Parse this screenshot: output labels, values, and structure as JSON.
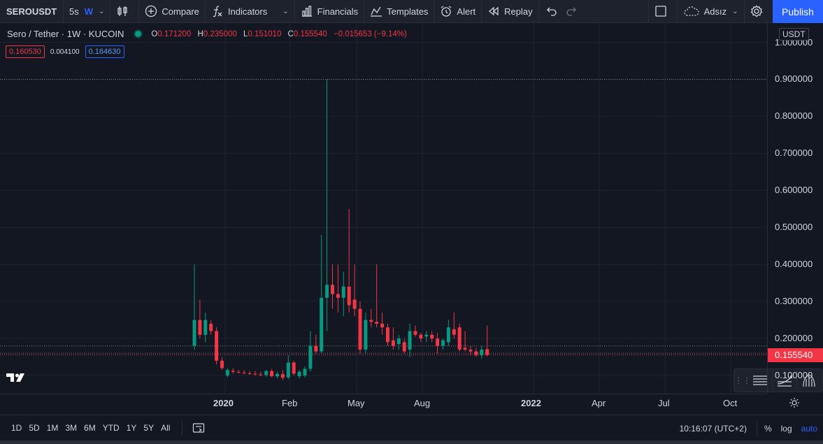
{
  "toolbar": {
    "symbol": "SEROUSDT",
    "interval_sec": "5s",
    "interval_active": "W",
    "compare": "Compare",
    "indicators": "Indicators",
    "financials": "Financials",
    "templates": "Templates",
    "alert": "Alert",
    "replay": "Replay",
    "layout_name": "Adsız",
    "publish": "Publish"
  },
  "legend": {
    "title": "Sero / Tether · 1W · KUCOIN",
    "o_label": "O",
    "o": "0.171200",
    "h_label": "H",
    "h": "0.235000",
    "l_label": "L",
    "l": "0.151010",
    "c_label": "C",
    "c": "0.155540",
    "change": "−0.015653 (−9.14%)",
    "bid": "0.160530",
    "spread": "0.004100",
    "ask": "0.164630"
  },
  "colors": {
    "up": "#089981",
    "down": "#f23645",
    "accent": "#2962ff",
    "bg": "#131722"
  },
  "price_scale": {
    "unit": "USDT",
    "ticks": [
      "1.000000",
      "0.900000",
      "0.800000",
      "0.700000",
      "0.600000",
      "0.500000",
      "0.400000",
      "0.300000",
      "0.200000",
      "0.100000"
    ],
    "last_price": "0.155540"
  },
  "time_scale": {
    "ticks": [
      "2020",
      "Feb",
      "May",
      "Aug",
      "2022",
      "Apr",
      "Jul",
      "Oct"
    ]
  },
  "bottom_bar": {
    "ranges": [
      "1D",
      "5D",
      "1M",
      "3M",
      "6M",
      "YTD",
      "1Y",
      "5Y",
      "All"
    ],
    "time": "10:16:07 (UTC+2)",
    "percent": "%",
    "log": "log",
    "auto": "auto"
  },
  "chart_data": {
    "type": "candlestick",
    "timeframe": "1W",
    "y_range": [
      0.08,
      1.0
    ],
    "ylabel": "USDT",
    "last_price": 0.15554,
    "horizontal_lines": [
      0.9,
      0.18,
      0.16
    ],
    "candles": [
      {
        "o": 0.18,
        "h": 0.4,
        "l": 0.17,
        "c": 0.25
      },
      {
        "o": 0.25,
        "h": 0.305,
        "l": 0.2,
        "c": 0.21
      },
      {
        "o": 0.21,
        "h": 0.27,
        "l": 0.19,
        "c": 0.25
      },
      {
        "o": 0.24,
        "h": 0.25,
        "l": 0.21,
        "c": 0.22
      },
      {
        "o": 0.22,
        "h": 0.23,
        "l": 0.13,
        "c": 0.14
      },
      {
        "o": 0.14,
        "h": 0.15,
        "l": 0.115,
        "c": 0.12
      },
      {
        "o": 0.1,
        "h": 0.12,
        "l": 0.095,
        "c": 0.115
      },
      {
        "o": 0.113,
        "h": 0.12,
        "l": 0.105,
        "c": 0.11
      },
      {
        "o": 0.11,
        "h": 0.115,
        "l": 0.105,
        "c": 0.108
      },
      {
        "o": 0.108,
        "h": 0.115,
        "l": 0.103,
        "c": 0.106
      },
      {
        "o": 0.106,
        "h": 0.112,
        "l": 0.102,
        "c": 0.105
      },
      {
        "o": 0.105,
        "h": 0.112,
        "l": 0.1,
        "c": 0.103
      },
      {
        "o": 0.103,
        "h": 0.11,
        "l": 0.098,
        "c": 0.101
      },
      {
        "o": 0.101,
        "h": 0.115,
        "l": 0.096,
        "c": 0.112
      },
      {
        "o": 0.112,
        "h": 0.118,
        "l": 0.095,
        "c": 0.098
      },
      {
        "o": 0.098,
        "h": 0.11,
        "l": 0.092,
        "c": 0.104
      },
      {
        "o": 0.104,
        "h": 0.115,
        "l": 0.088,
        "c": 0.094
      },
      {
        "o": 0.095,
        "h": 0.155,
        "l": 0.09,
        "c": 0.135
      },
      {
        "o": 0.135,
        "h": 0.14,
        "l": 0.1,
        "c": 0.105
      },
      {
        "o": 0.098,
        "h": 0.115,
        "l": 0.092,
        "c": 0.11
      },
      {
        "o": 0.1,
        "h": 0.125,
        "l": 0.095,
        "c": 0.118
      },
      {
        "o": 0.118,
        "h": 0.22,
        "l": 0.11,
        "c": 0.18
      },
      {
        "o": 0.18,
        "h": 0.21,
        "l": 0.16,
        "c": 0.165
      },
      {
        "o": 0.165,
        "h": 0.48,
        "l": 0.16,
        "c": 0.31
      },
      {
        "o": 0.31,
        "h": 0.9,
        "l": 0.22,
        "c": 0.345
      },
      {
        "o": 0.345,
        "h": 0.4,
        "l": 0.28,
        "c": 0.32
      },
      {
        "o": 0.32,
        "h": 0.4,
        "l": 0.27,
        "c": 0.31
      },
      {
        "o": 0.31,
        "h": 0.38,
        "l": 0.26,
        "c": 0.34
      },
      {
        "o": 0.34,
        "h": 0.55,
        "l": 0.27,
        "c": 0.29
      },
      {
        "o": 0.305,
        "h": 0.4,
        "l": 0.26,
        "c": 0.28
      },
      {
        "o": 0.28,
        "h": 0.3,
        "l": 0.16,
        "c": 0.17
      },
      {
        "o": 0.17,
        "h": 0.27,
        "l": 0.16,
        "c": 0.25
      },
      {
        "o": 0.25,
        "h": 0.28,
        "l": 0.23,
        "c": 0.245
      },
      {
        "o": 0.245,
        "h": 0.4,
        "l": 0.23,
        "c": 0.24
      },
      {
        "o": 0.24,
        "h": 0.27,
        "l": 0.21,
        "c": 0.23
      },
      {
        "o": 0.23,
        "h": 0.24,
        "l": 0.18,
        "c": 0.19
      },
      {
        "o": 0.195,
        "h": 0.23,
        "l": 0.17,
        "c": 0.18
      },
      {
        "o": 0.185,
        "h": 0.21,
        "l": 0.17,
        "c": 0.2
      },
      {
        "o": 0.19,
        "h": 0.2,
        "l": 0.16,
        "c": 0.165
      },
      {
        "o": 0.17,
        "h": 0.24,
        "l": 0.15,
        "c": 0.22
      },
      {
        "o": 0.22,
        "h": 0.235,
        "l": 0.205,
        "c": 0.21
      },
      {
        "o": 0.21,
        "h": 0.215,
        "l": 0.19,
        "c": 0.2
      },
      {
        "o": 0.205,
        "h": 0.22,
        "l": 0.19,
        "c": 0.21
      },
      {
        "o": 0.21,
        "h": 0.22,
        "l": 0.19,
        "c": 0.2
      },
      {
        "o": 0.2,
        "h": 0.215,
        "l": 0.16,
        "c": 0.18
      },
      {
        "o": 0.18,
        "h": 0.2,
        "l": 0.17,
        "c": 0.195
      },
      {
        "o": 0.19,
        "h": 0.25,
        "l": 0.18,
        "c": 0.23
      },
      {
        "o": 0.225,
        "h": 0.27,
        "l": 0.2,
        "c": 0.21
      },
      {
        "o": 0.23,
        "h": 0.24,
        "l": 0.165,
        "c": 0.17
      },
      {
        "o": 0.175,
        "h": 0.22,
        "l": 0.165,
        "c": 0.17
      },
      {
        "o": 0.17,
        "h": 0.18,
        "l": 0.155,
        "c": 0.165
      },
      {
        "o": 0.165,
        "h": 0.175,
        "l": 0.15,
        "c": 0.155
      },
      {
        "o": 0.155,
        "h": 0.18,
        "l": 0.145,
        "c": 0.17
      },
      {
        "o": 0.1712,
        "h": 0.235,
        "l": 0.15101,
        "c": 0.15554
      }
    ]
  }
}
